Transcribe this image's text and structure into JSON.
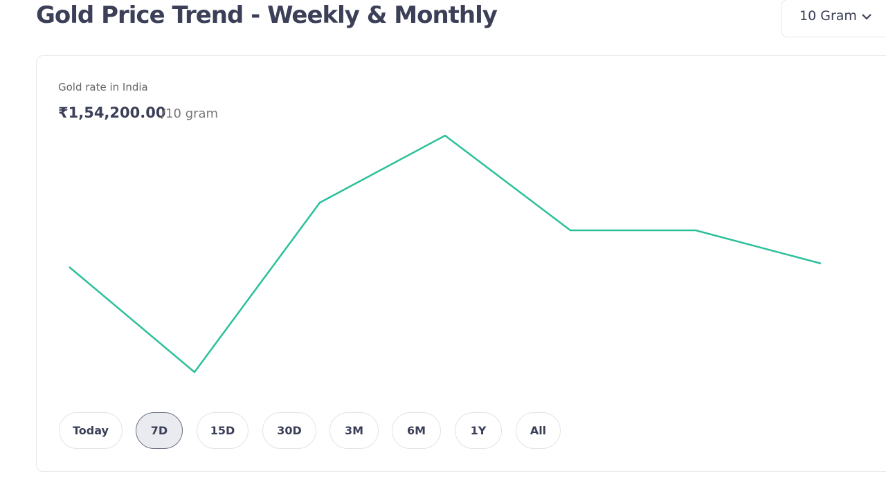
{
  "header": {
    "title": "Gold Price Trend - Weekly & Monthly",
    "unit_selector": "10 Gram"
  },
  "card": {
    "label": "Gold rate in India",
    "price": "₹1,54,200.00",
    "price_unit": "/10 gram",
    "ranges": [
      "Today",
      "7D",
      "15D",
      "30D",
      "3M",
      "6M",
      "1Y",
      "All"
    ],
    "selected_range": 1
  },
  "chart_data": {
    "type": "line",
    "color": "#2bbf9a",
    "values": [
      154100,
      151060,
      155960,
      157900,
      155160,
      155160,
      154200
    ],
    "ylim": [
      151060,
      157900
    ]
  }
}
